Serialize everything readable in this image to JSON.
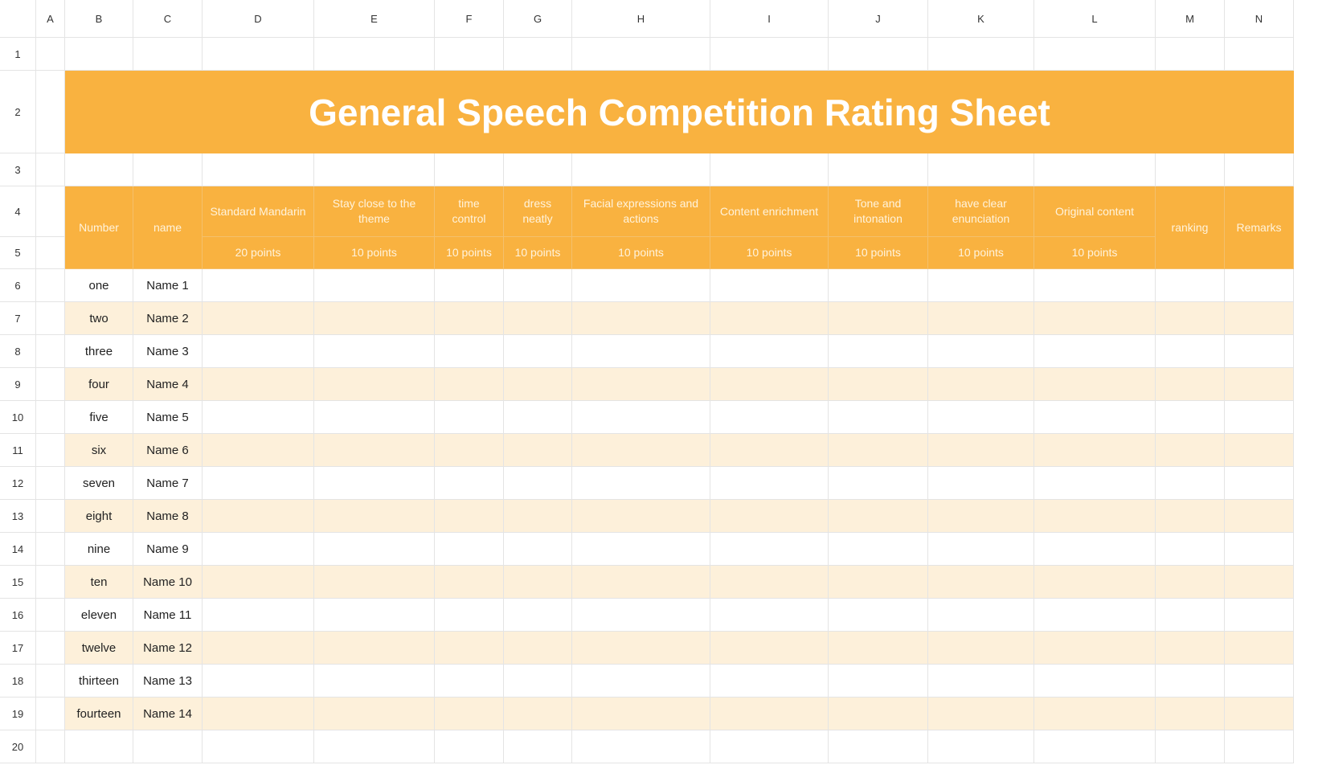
{
  "columns": [
    "A",
    "B",
    "C",
    "D",
    "E",
    "F",
    "G",
    "H",
    "I",
    "J",
    "K",
    "L",
    "M",
    "N"
  ],
  "rows": [
    "1",
    "2",
    "3",
    "4",
    "5",
    "6",
    "7",
    "8",
    "9",
    "10",
    "11",
    "12",
    "13",
    "14",
    "15",
    "16",
    "17",
    "18",
    "19",
    "20"
  ],
  "title": "General Speech Competition Rating Sheet",
  "header": {
    "number": "Number",
    "name": "name",
    "criteria": [
      {
        "label": "Standard Mandarin",
        "points": "20 points"
      },
      {
        "label": "Stay close to the theme",
        "points": "10 points"
      },
      {
        "label": "time control",
        "points": "10 points"
      },
      {
        "label": "dress neatly",
        "points": "10 points"
      },
      {
        "label": "Facial expressions and actions",
        "points": "10 points"
      },
      {
        "label": "Content enrichment",
        "points": "10 points"
      },
      {
        "label": "Tone and intonation",
        "points": "10 points"
      },
      {
        "label": "have clear enunciation",
        "points": "10 points"
      },
      {
        "label": "Original content",
        "points": "10 points"
      }
    ],
    "ranking": "ranking",
    "remarks": "Remarks"
  },
  "entries": [
    {
      "number": "one",
      "name": "Name 1"
    },
    {
      "number": "two",
      "name": "Name 2"
    },
    {
      "number": "three",
      "name": "Name 3"
    },
    {
      "number": "four",
      "name": "Name 4"
    },
    {
      "number": "five",
      "name": "Name 5"
    },
    {
      "number": "six",
      "name": "Name 6"
    },
    {
      "number": "seven",
      "name": "Name 7"
    },
    {
      "number": "eight",
      "name": "Name 8"
    },
    {
      "number": "nine",
      "name": "Name 9"
    },
    {
      "number": "ten",
      "name": "Name 10"
    },
    {
      "number": "eleven",
      "name": "Name 11"
    },
    {
      "number": "twelve",
      "name": "Name 12"
    },
    {
      "number": "thirteen",
      "name": "Name 13"
    },
    {
      "number": "fourteen",
      "name": "Name 14"
    }
  ]
}
